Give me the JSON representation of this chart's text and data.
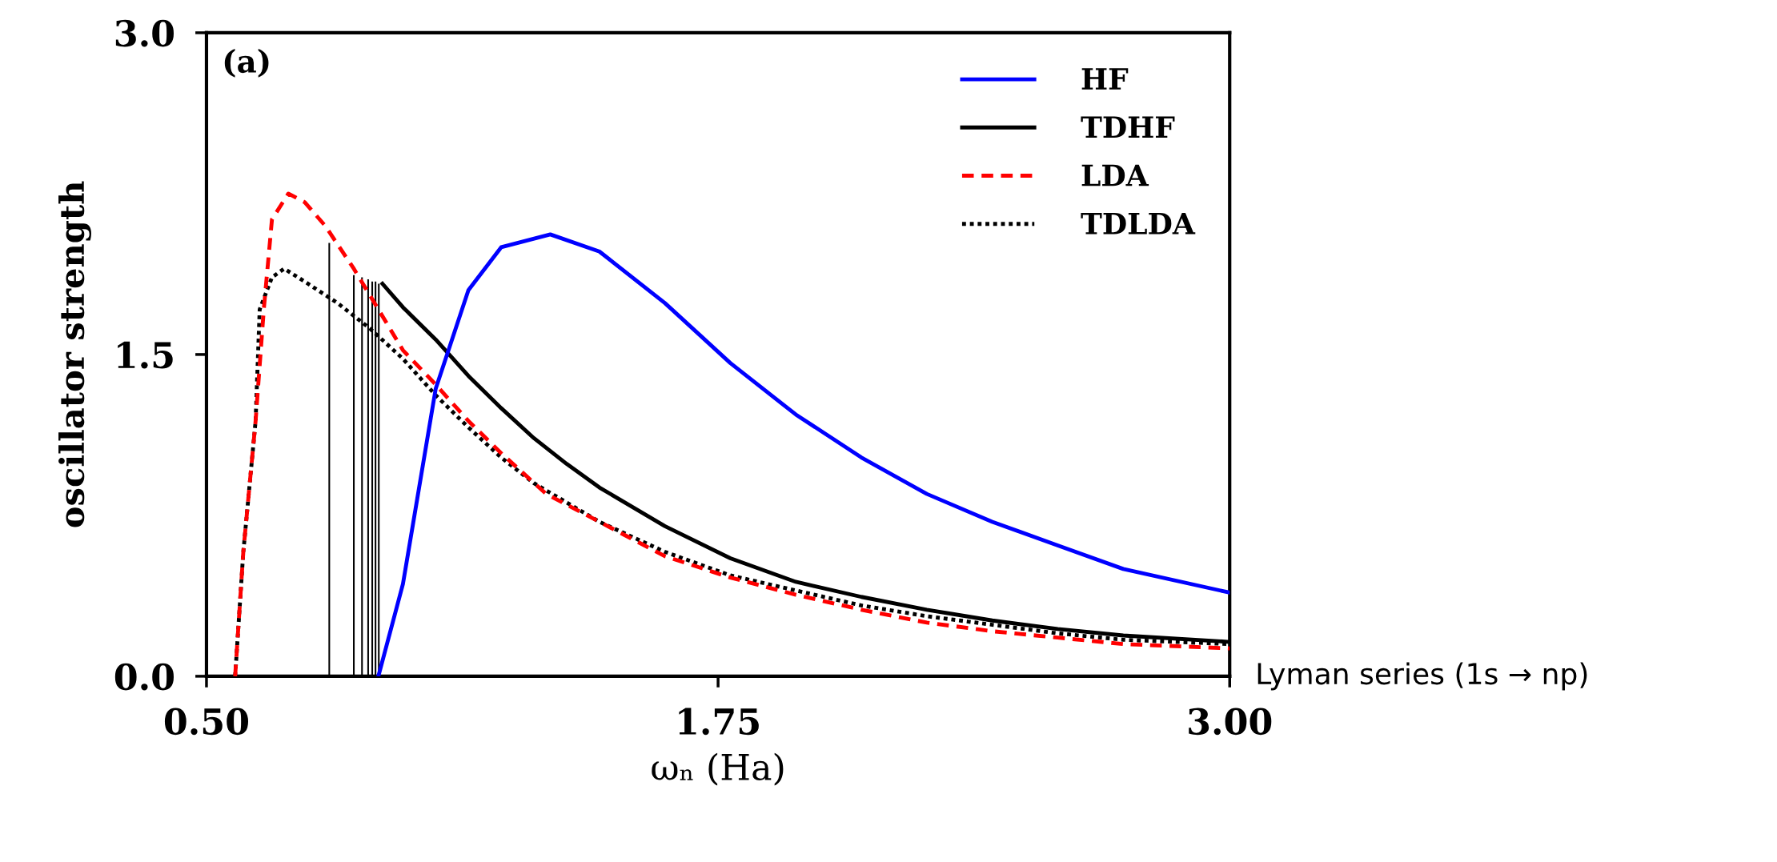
{
  "chart_data": {
    "type": "line",
    "xlabel": "ωₙ (Ha)",
    "ylabel": "oscillator strength",
    "annotations": [
      "(a)",
      "Lyman series (1s → np)"
    ],
    "xlim": [
      0.5,
      3.0
    ],
    "ylim": [
      0.0,
      3.0
    ],
    "xticks": [
      {
        "value": 0.5,
        "label": "0.50"
      },
      {
        "value": 1.75,
        "label": "1.75"
      },
      {
        "value": 3.0,
        "label": "3.00"
      }
    ],
    "yticks": [
      {
        "value": 0.0,
        "label": "0.0"
      },
      {
        "value": 1.5,
        "label": "1.5"
      },
      {
        "value": 3.0,
        "label": "3.0"
      }
    ],
    "grid": false,
    "legend": "top right",
    "series": [
      {
        "name": "HF",
        "color": "#0000ff",
        "line_style": "solid",
        "x": [
          0.92,
          0.98,
          1.06,
          1.14,
          1.22,
          1.34,
          1.46,
          1.62,
          1.78,
          1.94,
          2.1,
          2.26,
          2.42,
          2.58,
          2.74,
          3.0
        ],
        "values": [
          0.0,
          0.43,
          1.34,
          1.8,
          2.0,
          2.06,
          1.98,
          1.74,
          1.46,
          1.22,
          1.02,
          0.85,
          0.72,
          0.61,
          0.5,
          0.39
        ]
      },
      {
        "name": "TDHF",
        "color": "#000000",
        "line_style": "solid",
        "x": [
          0.93,
          0.98,
          1.06,
          1.14,
          1.22,
          1.3,
          1.38,
          1.46,
          1.62,
          1.78,
          1.94,
          2.1,
          2.26,
          2.42,
          2.58,
          2.74,
          3.0
        ],
        "values": [
          1.83,
          1.72,
          1.57,
          1.4,
          1.25,
          1.11,
          0.99,
          0.88,
          0.7,
          0.55,
          0.44,
          0.37,
          0.31,
          0.26,
          0.22,
          0.19,
          0.16
        ]
      },
      {
        "name": "LDA",
        "color": "#ff0000",
        "line_style": "dashed",
        "x": [
          0.57,
          0.59,
          0.62,
          0.64,
          0.66,
          0.7,
          0.74,
          0.79,
          0.86,
          0.92,
          0.98,
          1.06,
          1.14,
          1.22,
          1.33,
          1.46,
          1.62,
          1.78,
          1.94,
          2.1,
          2.26,
          2.42,
          2.58,
          2.74,
          3.0
        ],
        "values": [
          0.0,
          0.58,
          1.19,
          1.71,
          2.13,
          2.25,
          2.21,
          2.1,
          1.9,
          1.71,
          1.52,
          1.36,
          1.19,
          1.04,
          0.85,
          0.72,
          0.56,
          0.46,
          0.38,
          0.31,
          0.25,
          0.21,
          0.18,
          0.15,
          0.13
        ]
      },
      {
        "name": "TDLDA",
        "color": "#000000",
        "line_style": "dotted",
        "x": [
          0.57,
          0.59,
          0.62,
          0.63,
          0.66,
          0.69,
          0.74,
          0.82,
          0.9,
          0.98,
          1.06,
          1.14,
          1.22,
          1.3,
          1.46,
          1.62,
          1.78,
          1.94,
          2.1,
          2.26,
          2.42,
          2.58,
          2.74,
          3.0
        ],
        "values": [
          0.0,
          0.58,
          1.19,
          1.71,
          1.86,
          1.9,
          1.84,
          1.74,
          1.62,
          1.48,
          1.31,
          1.16,
          1.02,
          0.9,
          0.72,
          0.58,
          0.47,
          0.4,
          0.33,
          0.28,
          0.24,
          0.2,
          0.17,
          0.15
        ]
      },
      {
        "type": "bar",
        "color": "#000000",
        "x": [
          0.8,
          0.86,
          0.88,
          0.895,
          0.905,
          0.913,
          0.921
        ],
        "values": [
          2.02,
          1.87,
          1.86,
          1.85,
          1.84,
          1.84,
          1.83
        ]
      }
    ]
  }
}
